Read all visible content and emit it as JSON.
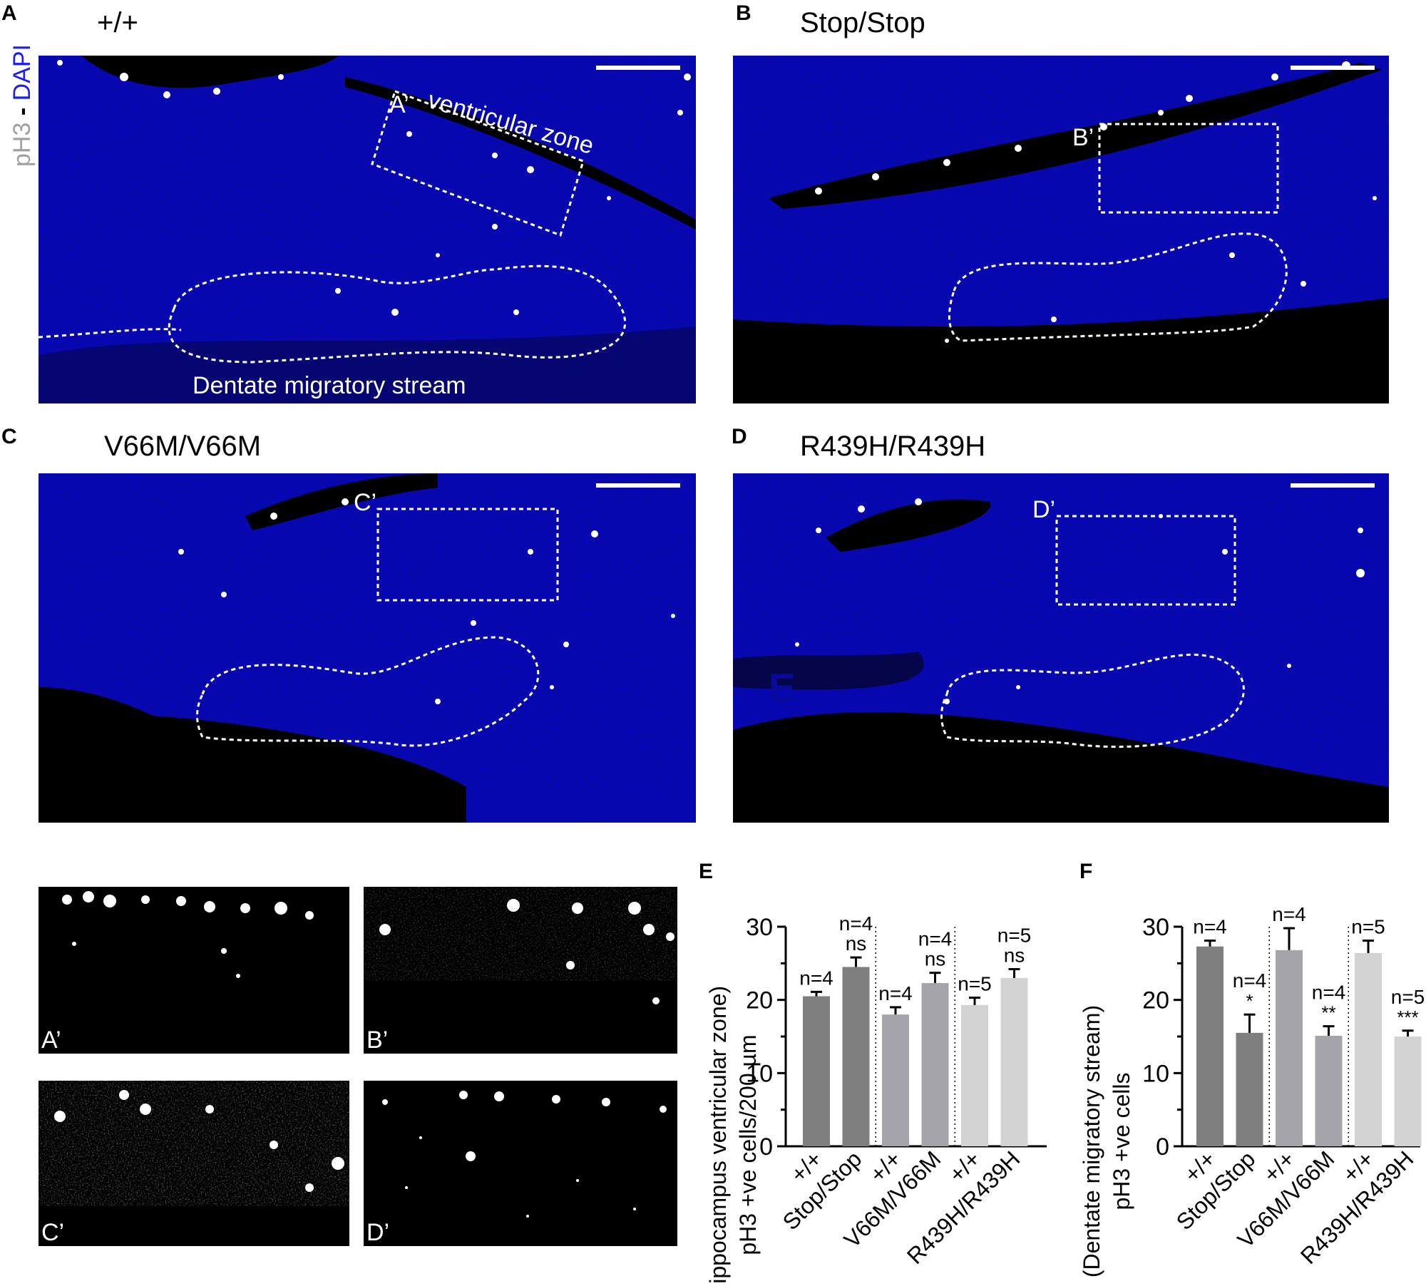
{
  "side_label": {
    "part1": "pH3",
    "part2": " - ",
    "part3": "DAPI"
  },
  "panels": {
    "A": {
      "letter": "A",
      "genotype": "+/+",
      "box_label": "A’",
      "vz_label": "ventricular zone",
      "dms_label": "Dentate migratory stream"
    },
    "B": {
      "letter": "B",
      "genotype": "Stop/Stop",
      "box_label": "B’"
    },
    "C": {
      "letter": "C",
      "genotype": "V66M/V66M",
      "box_label": "C’"
    },
    "D": {
      "letter": "D",
      "genotype": "R439H/R439H",
      "box_label": "D’",
      "stray_label": "E"
    }
  },
  "insets": [
    "A’",
    "B’",
    "C’",
    "D’"
  ],
  "colors": {
    "dapi": "#1212e6",
    "pH3": "#ffffff",
    "wt_bar": "#7f7f7f",
    "v66m_bar": "#a4a4aa",
    "r439h_bar": "#d3d3d3",
    "stop_bar": "#7f7f7f"
  },
  "chart_data": [
    {
      "type": "bar",
      "panel_letter": "E",
      "categories": [
        "+/+",
        "Stop/Stop",
        "+/+",
        "V66M/V66M",
        "+/+",
        "R439H/R439H"
      ],
      "values": [
        20.5,
        24.5,
        18,
        22.3,
        19.3,
        23
      ],
      "errors": [
        0.6,
        1.3,
        1.0,
        1.4,
        1.0,
        1.2
      ],
      "n_labels": [
        "n=4",
        "n=4",
        "n=4",
        "n=4",
        "n=5",
        "n=5"
      ],
      "sig_labels": [
        "",
        "ns",
        "",
        "ns",
        "",
        "ns"
      ],
      "ylabel_line1": "(hippocampus ventricular zone)",
      "ylabel_line2": "pH3 +ve cells/200 µm",
      "yticks": [
        "0",
        "10",
        "20",
        "30"
      ],
      "ylim": [
        0,
        30
      ],
      "bar_colors": [
        "#7f7f7f",
        "#7f7f7f",
        "#a4a4aa",
        "#a4a4aa",
        "#d3d3d3",
        "#d3d3d3"
      ]
    },
    {
      "type": "bar",
      "panel_letter": "F",
      "categories": [
        "+/+",
        "Stop/Stop",
        "+/+",
        "V66M/V66M",
        "+/+",
        "R439H/R439H"
      ],
      "values": [
        27.3,
        15.5,
        26.8,
        15.1,
        26.4,
        15
      ],
      "errors": [
        0.8,
        2.5,
        3.0,
        1.3,
        1.7,
        0.8
      ],
      "n_labels": [
        "n=4",
        "n=4",
        "n=4",
        "n=4",
        "n=5",
        "n=5"
      ],
      "sig_labels": [
        "",
        "*",
        "",
        "**",
        "",
        "***"
      ],
      "ylabel_line1": "(Dentate migratory stream)",
      "ylabel_line2": "pH3 +ve cells",
      "yticks": [
        "0",
        "10",
        "20",
        "30"
      ],
      "ylim": [
        0,
        30
      ],
      "bar_colors": [
        "#7f7f7f",
        "#7f7f7f",
        "#a4a4aa",
        "#a4a4aa",
        "#d3d3d3",
        "#d3d3d3"
      ]
    }
  ]
}
